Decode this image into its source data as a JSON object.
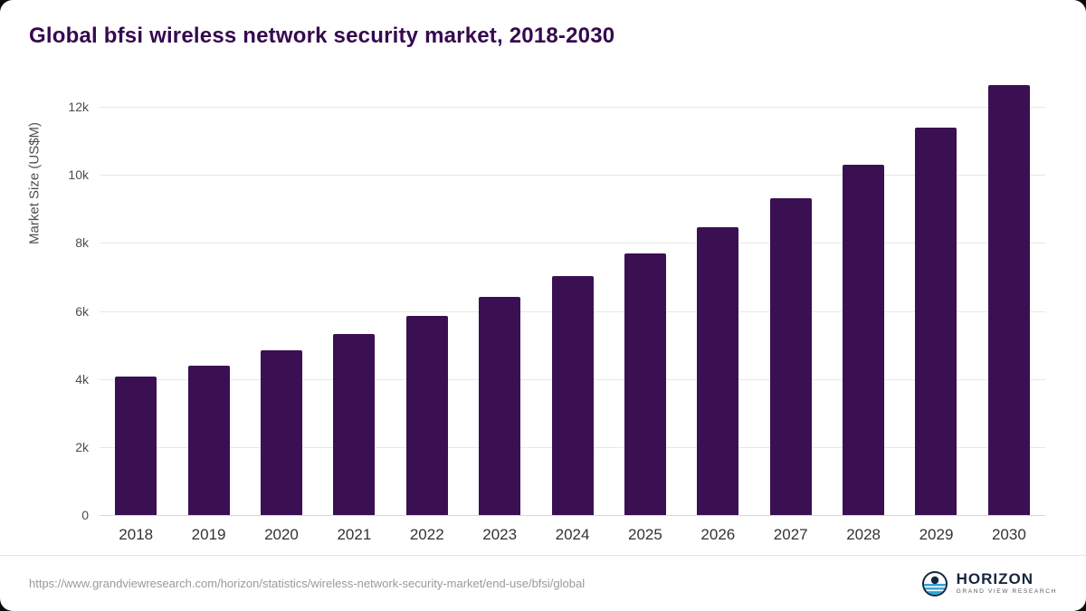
{
  "page": {
    "title": "Global bfsi wireless network security market, 2018-2030"
  },
  "colors": {
    "bar": "#3b1053",
    "title": "#35094f",
    "axis_text": "#4d4d4d",
    "gridline": "#e7e7e7",
    "source_text": "#9a9a9a",
    "brand_navy": "#16253f",
    "brand_blue": "#2fa3d7"
  },
  "chart_data": {
    "type": "bar",
    "title": "Global bfsi wireless network security market, 2018-2030",
    "categories": [
      "2018",
      "2019",
      "2020",
      "2021",
      "2022",
      "2023",
      "2024",
      "2025",
      "2026",
      "2027",
      "2028",
      "2029",
      "2030"
    ],
    "values": [
      4070,
      4400,
      4840,
      5330,
      5850,
      6420,
      7030,
      7700,
      8470,
      9320,
      10300,
      11380,
      12650
    ],
    "xlabel": "",
    "ylabel": "Market Size (US$M)",
    "ylim": [
      0,
      12800
    ],
    "yticks": [
      0,
      2000,
      4000,
      6000,
      8000,
      10000,
      12000
    ],
    "ytick_labels": [
      "0",
      "2k",
      "4k",
      "6k",
      "8k",
      "10k",
      "12k"
    ],
    "grid": "horizontal",
    "legend": "none",
    "bar_color": "#3b1053"
  },
  "footer": {
    "source_url": "https://www.grandviewresearch.com/horizon/statistics/wireless-network-security-market/end-use/bfsi/global",
    "brand": {
      "name": "HORIZON",
      "subtitle": "GRAND VIEW RESEARCH",
      "logo_icon": "horizon-circle-icon"
    }
  }
}
